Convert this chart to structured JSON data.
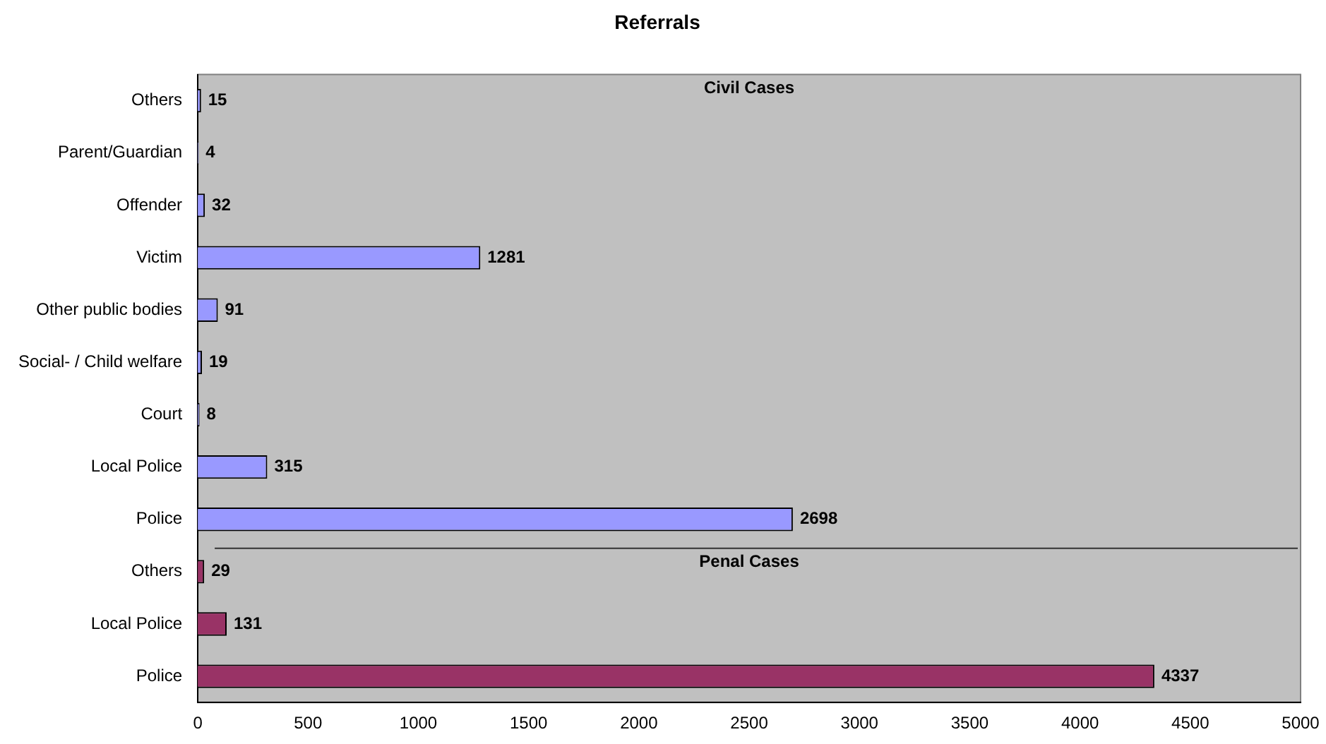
{
  "chart_data": {
    "type": "bar",
    "orientation": "horizontal",
    "title": "Referrals",
    "categories": [
      "Others",
      "Parent/Guardian",
      "Offender",
      "Victim",
      "Other public bodies",
      "Social- / Child welfare",
      "Court",
      "Local Police",
      "Police",
      "Others",
      "Local Police",
      "Police"
    ],
    "values": [
      15,
      4,
      32,
      1281,
      91,
      19,
      8,
      315,
      2698,
      29,
      131,
      4337
    ],
    "colors": [
      "#9999ff",
      "#9999ff",
      "#9999ff",
      "#9999ff",
      "#9999ff",
      "#9999ff",
      "#9999ff",
      "#9999ff",
      "#9999ff",
      "#993366",
      "#993366",
      "#993366"
    ],
    "xlim": [
      0,
      5000
    ],
    "xticks": [
      0,
      500,
      1000,
      1500,
      2000,
      2500,
      3000,
      3500,
      4000,
      4500,
      5000
    ],
    "grid": false,
    "legend": false,
    "data_labels": true,
    "annotations": [
      "Civil Cases",
      "Penal Cases"
    ]
  }
}
